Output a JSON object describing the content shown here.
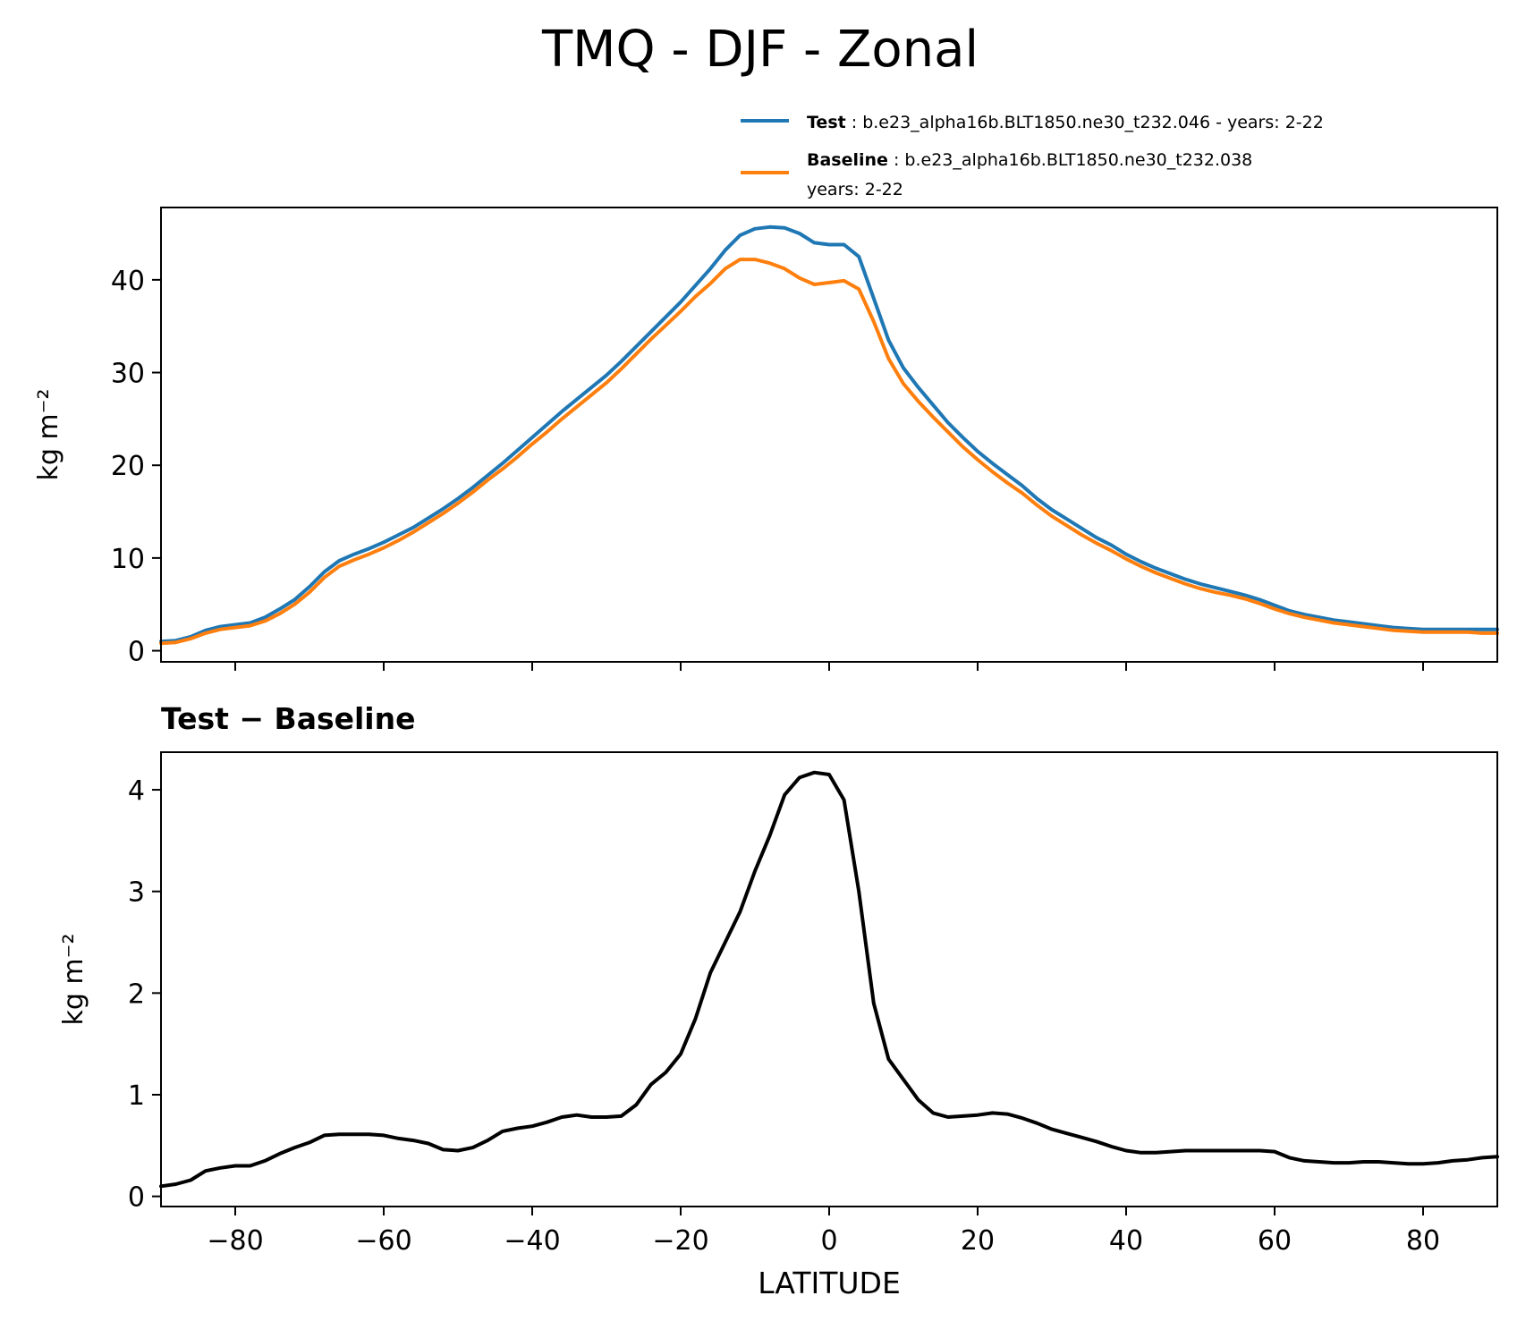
{
  "figure": {
    "title": "TMQ - DJF - Zonal"
  },
  "legend": {
    "test_label": "Test",
    "test_desc": ": b.e23_alpha16b.BLT1850.ne30_t232.046 - years: 2-22",
    "baseline_label": "Baseline",
    "baseline_desc": ": b.e23_alpha16b.BLT1850.ne30_t232.038",
    "baseline_desc2": "years: 2-22"
  },
  "colors": {
    "test": "#1f77b4",
    "baseline": "#ff7f0e",
    "difference": "#000000"
  },
  "chart_data": [
    {
      "type": "line",
      "title": "",
      "xlabel": "",
      "ylabel": "kg m⁻²",
      "xlim": [
        -90,
        90
      ],
      "ylim": [
        -1.2,
        47.8
      ],
      "xticks": [
        -80,
        -60,
        -40,
        -20,
        0,
        20,
        40,
        60,
        80
      ],
      "yticks": [
        0,
        10,
        20,
        30,
        40
      ],
      "legend_position": "above-right",
      "x": [
        -90,
        -88,
        -86,
        -84,
        -82,
        -80,
        -78,
        -76,
        -74,
        -72,
        -70,
        -68,
        -66,
        -64,
        -62,
        -60,
        -58,
        -56,
        -54,
        -52,
        -50,
        -48,
        -46,
        -44,
        -42,
        -40,
        -38,
        -36,
        -34,
        -32,
        -30,
        -28,
        -26,
        -24,
        -22,
        -20,
        -18,
        -16,
        -14,
        -12,
        -10,
        -8,
        -6,
        -4,
        -2,
        0,
        2,
        4,
        6,
        8,
        10,
        12,
        14,
        16,
        18,
        20,
        22,
        24,
        26,
        28,
        30,
        32,
        34,
        36,
        38,
        40,
        42,
        44,
        46,
        48,
        50,
        52,
        54,
        56,
        58,
        60,
        62,
        64,
        66,
        68,
        70,
        72,
        74,
        76,
        78,
        80,
        82,
        84,
        86,
        88,
        90
      ],
      "series": [
        {
          "name": "Test",
          "values": [
            1.0,
            1.1,
            1.5,
            2.2,
            2.6,
            2.8,
            3.0,
            3.6,
            4.5,
            5.5,
            6.9,
            8.5,
            9.7,
            10.4,
            11.0,
            11.7,
            12.5,
            13.3,
            14.3,
            15.3,
            16.4,
            17.6,
            18.9,
            20.2,
            21.6,
            23.0,
            24.4,
            25.8,
            27.1,
            28.4,
            29.7,
            31.2,
            32.8,
            34.4,
            36.0,
            37.6,
            39.4,
            41.2,
            43.2,
            44.8,
            45.5,
            45.7,
            45.6,
            45.0,
            44.0,
            43.8,
            43.8,
            42.5,
            38.0,
            33.5,
            30.5,
            28.4,
            26.5,
            24.6,
            23.0,
            21.5,
            20.2,
            19.0,
            17.8,
            16.4,
            15.2,
            14.2,
            13.2,
            12.2,
            11.4,
            10.4,
            9.6,
            8.9,
            8.3,
            7.7,
            7.2,
            6.8,
            6.4,
            6.0,
            5.5,
            4.9,
            4.3,
            3.9,
            3.6,
            3.3,
            3.1,
            2.9,
            2.7,
            2.5,
            2.4,
            2.3,
            2.3,
            2.3,
            2.3,
            2.3,
            2.3
          ]
        },
        {
          "name": "Baseline",
          "values": [
            0.8,
            0.9,
            1.3,
            1.9,
            2.3,
            2.5,
            2.7,
            3.2,
            4.0,
            5.0,
            6.3,
            7.9,
            9.1,
            9.8,
            10.4,
            11.1,
            11.9,
            12.8,
            13.8,
            14.8,
            15.9,
            17.1,
            18.4,
            19.6,
            20.9,
            22.3,
            23.6,
            25.0,
            26.3,
            27.6,
            28.9,
            30.4,
            32.0,
            33.6,
            35.1,
            36.6,
            38.2,
            39.6,
            41.2,
            42.2,
            42.2,
            41.8,
            41.2,
            40.2,
            39.5,
            39.7,
            39.9,
            39.0,
            35.5,
            31.5,
            28.8,
            26.9,
            25.2,
            23.6,
            22.0,
            20.6,
            19.3,
            18.1,
            17.0,
            15.7,
            14.5,
            13.5,
            12.5,
            11.6,
            10.8,
            9.9,
            9.1,
            8.4,
            7.8,
            7.2,
            6.7,
            6.3,
            6.0,
            5.6,
            5.1,
            4.5,
            4.0,
            3.6,
            3.3,
            3.0,
            2.8,
            2.6,
            2.4,
            2.2,
            2.1,
            2.0,
            2.0,
            2.0,
            2.0,
            1.9,
            1.9
          ]
        }
      ]
    },
    {
      "type": "line",
      "title": "Test − Baseline",
      "xlabel": "LATITUDE",
      "ylabel": "kg m⁻²",
      "xlim": [
        -90,
        90
      ],
      "ylim": [
        -0.1,
        4.37
      ],
      "xticks": [
        -80,
        -60,
        -40,
        -20,
        0,
        20,
        40,
        60,
        80
      ],
      "xticklabels": [
        "−80",
        "−60",
        "−40",
        "−20",
        "0",
        "20",
        "40",
        "60",
        "80"
      ],
      "yticks": [
        0,
        1,
        2,
        3,
        4
      ],
      "x": [
        -90,
        -88,
        -86,
        -84,
        -82,
        -80,
        -78,
        -76,
        -74,
        -72,
        -70,
        -68,
        -66,
        -64,
        -62,
        -60,
        -58,
        -56,
        -54,
        -52,
        -50,
        -48,
        -46,
        -44,
        -42,
        -40,
        -38,
        -36,
        -34,
        -32,
        -30,
        -28,
        -26,
        -24,
        -22,
        -20,
        -18,
        -16,
        -14,
        -12,
        -10,
        -8,
        -6,
        -4,
        -2,
        0,
        2,
        4,
        6,
        8,
        10,
        12,
        14,
        16,
        18,
        20,
        22,
        24,
        26,
        28,
        30,
        32,
        34,
        36,
        38,
        40,
        42,
        44,
        46,
        48,
        50,
        52,
        54,
        56,
        58,
        60,
        62,
        64,
        66,
        68,
        70,
        72,
        74,
        76,
        78,
        80,
        82,
        84,
        86,
        88,
        90
      ],
      "series": [
        {
          "name": "Test − Baseline",
          "values": [
            0.1,
            0.12,
            0.16,
            0.25,
            0.28,
            0.3,
            0.3,
            0.35,
            0.42,
            0.48,
            0.53,
            0.6,
            0.61,
            0.61,
            0.61,
            0.6,
            0.57,
            0.55,
            0.52,
            0.46,
            0.45,
            0.48,
            0.55,
            0.64,
            0.67,
            0.69,
            0.73,
            0.78,
            0.8,
            0.78,
            0.78,
            0.79,
            0.9,
            1.1,
            1.22,
            1.4,
            1.75,
            2.2,
            2.5,
            2.8,
            3.2,
            3.55,
            3.95,
            4.12,
            4.17,
            4.15,
            3.9,
            3.0,
            1.9,
            1.35,
            1.15,
            0.95,
            0.82,
            0.78,
            0.79,
            0.8,
            0.82,
            0.81,
            0.77,
            0.72,
            0.66,
            0.62,
            0.58,
            0.54,
            0.49,
            0.45,
            0.43,
            0.43,
            0.44,
            0.45,
            0.45,
            0.45,
            0.45,
            0.45,
            0.45,
            0.44,
            0.38,
            0.35,
            0.34,
            0.33,
            0.33,
            0.34,
            0.34,
            0.33,
            0.32,
            0.32,
            0.33,
            0.35,
            0.36,
            0.38,
            0.39
          ]
        }
      ]
    }
  ]
}
